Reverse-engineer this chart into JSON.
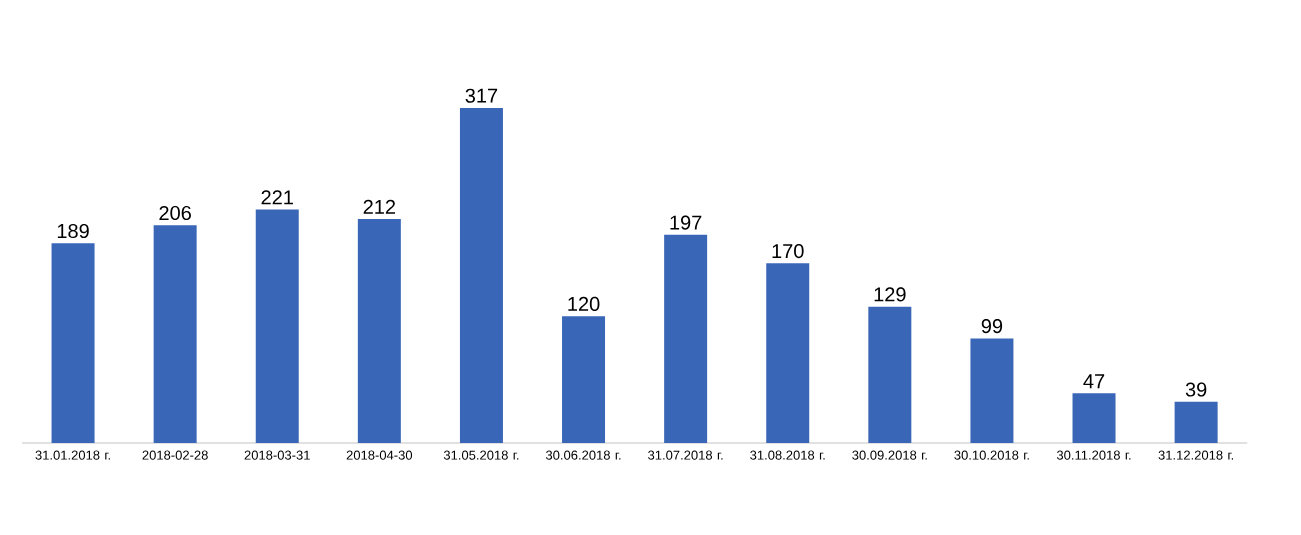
{
  "chart_data": {
    "type": "bar",
    "categories": [
      "31.01.2018 г.",
      "2018-02-28",
      "2018-03-31",
      "2018-04-30",
      "31.05.2018 г.",
      "30.06.2018 г.",
      "31.07.2018 г.",
      "31.08.2018 г.",
      "30.09.2018 г.",
      "30.10.2018 г.",
      "30.11.2018 г.",
      "31.12.2018 г."
    ],
    "values": [
      189,
      206,
      221,
      212,
      317,
      120,
      197,
      170,
      129,
      99,
      47,
      39
    ],
    "color": "#3a66b8",
    "data_labels": true
  }
}
